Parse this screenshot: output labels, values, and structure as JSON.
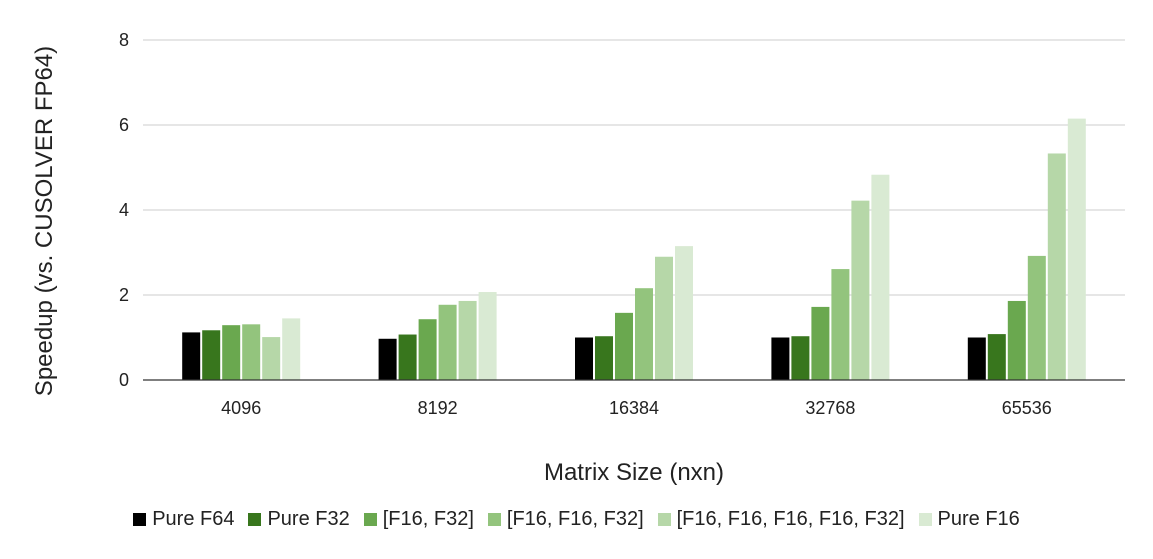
{
  "chart_data": {
    "type": "bar",
    "title": "",
    "xlabel": "Matrix Size (nxn)",
    "ylabel": "Speedup (vs. CUSOLVER FP64)",
    "ylim": [
      0,
      8
    ],
    "yticks": [
      "0",
      "2",
      "4",
      "6",
      "8"
    ],
    "grid": true,
    "legend_position": "bottom",
    "categories": [
      "4096",
      "8192",
      "16384",
      "32768",
      "65536"
    ],
    "series": [
      {
        "name": "Pure F64",
        "color": "#000000",
        "values": [
          1.12,
          0.97,
          1.0,
          1.0,
          1.0
        ]
      },
      {
        "name": "Pure F32",
        "color": "#38761d",
        "values": [
          1.17,
          1.07,
          1.03,
          1.03,
          1.08
        ]
      },
      {
        "name": "[F16, F32]",
        "color": "#6aa84f",
        "values": [
          1.29,
          1.43,
          1.58,
          1.72,
          1.86
        ]
      },
      {
        "name": "[F16, F16, F32]",
        "color": "#93c47d",
        "values": [
          1.31,
          1.77,
          2.16,
          2.61,
          2.92
        ]
      },
      {
        "name": "[F16, F16, F16, F16, F32]",
        "color": "#b6d7a8",
        "values": [
          1.01,
          1.86,
          2.9,
          4.22,
          5.33
        ]
      },
      {
        "name": "Pure F16",
        "color": "#d9ead3",
        "values": [
          1.45,
          2.07,
          3.15,
          4.83,
          6.15
        ]
      }
    ]
  }
}
